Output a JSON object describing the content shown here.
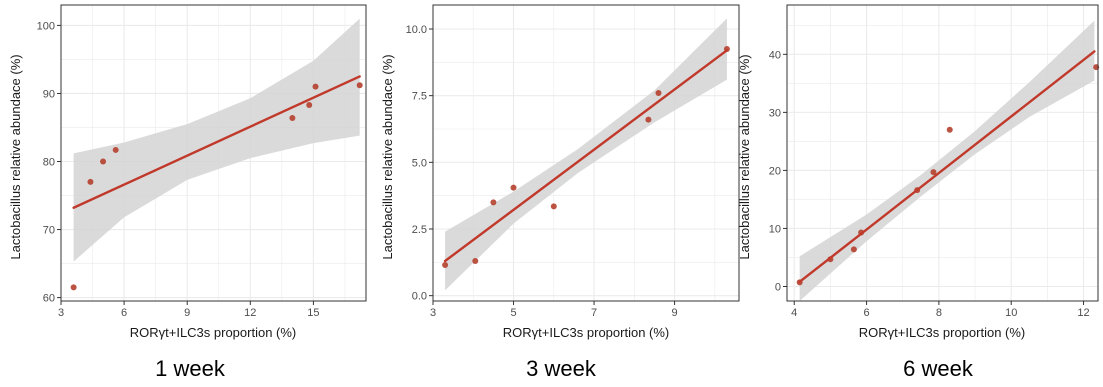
{
  "colors": {
    "point": "#b5402e",
    "line": "#c0392b",
    "band": "#d3d3d3",
    "grid": "#ebebeb",
    "frame": "#333333"
  },
  "chart_data": [
    {
      "type": "scatter",
      "caption": "1 week",
      "xlabel": "RORγt+ILC3s proportion (%)",
      "ylabel": "Lactobacillus relative abundace (%)",
      "xlim": [
        3,
        17.5
      ],
      "ylim": [
        59.5,
        103
      ],
      "xticks": [
        3,
        6,
        9,
        12,
        15
      ],
      "yticks": [
        60,
        70,
        80,
        90,
        100
      ],
      "x_tick_labels": [
        "3",
        "6",
        "9",
        "12",
        "15"
      ],
      "y_tick_labels": [
        "60",
        "70",
        "80",
        "90",
        "100"
      ],
      "points": [
        {
          "x": 3.6,
          "y": 61.5
        },
        {
          "x": 4.4,
          "y": 77
        },
        {
          "x": 5.0,
          "y": 80
        },
        {
          "x": 5.6,
          "y": 81.7
        },
        {
          "x": 14.0,
          "y": 86.4
        },
        {
          "x": 14.8,
          "y": 88.3
        },
        {
          "x": 15.1,
          "y": 91
        },
        {
          "x": 17.2,
          "y": 91.2
        }
      ],
      "fit": {
        "x": [
          3.6,
          17.2
        ],
        "y": [
          73.2,
          92.5
        ]
      },
      "band": [
        {
          "x": 3.6,
          "lo": 65.3,
          "hi": 81.2
        },
        {
          "x": 6,
          "lo": 71.8,
          "hi": 82.8
        },
        {
          "x": 9,
          "lo": 77.3,
          "hi": 85.5
        },
        {
          "x": 12,
          "lo": 80.5,
          "hi": 89.3
        },
        {
          "x": 15,
          "lo": 82.7,
          "hi": 94.8
        },
        {
          "x": 17.2,
          "lo": 83.8,
          "hi": 101
        }
      ],
      "grid": true
    },
    {
      "type": "scatter",
      "caption": "3 week",
      "xlabel": "RORγt+ILC3s proportion (%)",
      "ylabel": "Lactobacillus relative abundace (%)",
      "xlim": [
        3,
        10.6
      ],
      "ylim": [
        -0.2,
        10.9
      ],
      "xticks": [
        3,
        5,
        7,
        9
      ],
      "yticks": [
        0,
        2.5,
        5,
        7.5,
        10
      ],
      "x_tick_labels": [
        "3",
        "5",
        "7",
        "9"
      ],
      "y_tick_labels": [
        "0.0",
        "2.5",
        "5.0",
        "7.5",
        "10.0"
      ],
      "points": [
        {
          "x": 3.3,
          "y": 1.15
        },
        {
          "x": 4.05,
          "y": 1.3
        },
        {
          "x": 4.5,
          "y": 3.5
        },
        {
          "x": 5.0,
          "y": 4.05
        },
        {
          "x": 6.0,
          "y": 3.35
        },
        {
          "x": 8.35,
          "y": 6.6
        },
        {
          "x": 8.6,
          "y": 7.6
        },
        {
          "x": 10.3,
          "y": 9.25
        }
      ],
      "fit": {
        "x": [
          3.3,
          10.3
        ],
        "y": [
          1.3,
          9.2
        ]
      },
      "band": [
        {
          "x": 3.3,
          "lo": 0.2,
          "hi": 2.4
        },
        {
          "x": 5,
          "lo": 2.7,
          "hi": 3.9
        },
        {
          "x": 6.6,
          "lo": 4.6,
          "hi": 5.5
        },
        {
          "x": 8.5,
          "lo": 6.5,
          "hi": 7.7
        },
        {
          "x": 10.3,
          "lo": 8.1,
          "hi": 10.4
        }
      ],
      "grid": true
    },
    {
      "type": "scatter",
      "caption": "6 week",
      "xlabel": "RORγt+ILC3s proportion (%)",
      "ylabel": "Lactobacillus relative abundace (%)",
      "xlim": [
        3.8,
        12.4
      ],
      "ylim": [
        -2.5,
        48.5
      ],
      "xticks": [
        4,
        6,
        8,
        10,
        12
      ],
      "yticks": [
        0,
        10,
        20,
        30,
        40
      ],
      "x_tick_labels": [
        "4",
        "6",
        "8",
        "10",
        "12"
      ],
      "y_tick_labels": [
        "0",
        "10",
        "20",
        "30",
        "40"
      ],
      "points": [
        {
          "x": 4.15,
          "y": 0.7
        },
        {
          "x": 5.0,
          "y": 4.7
        },
        {
          "x": 5.65,
          "y": 6.4
        },
        {
          "x": 5.85,
          "y": 9.3
        },
        {
          "x": 7.4,
          "y": 16.6
        },
        {
          "x": 7.85,
          "y": 19.7
        },
        {
          "x": 8.3,
          "y": 27
        },
        {
          "x": 12.35,
          "y": 37.8
        }
      ],
      "fit": {
        "x": [
          4.15,
          12.3
        ],
        "y": [
          0.8,
          40.5
        ]
      },
      "band": [
        {
          "x": 4.15,
          "lo": -2.5,
          "hi": 5.2
        },
        {
          "x": 6,
          "lo": 7.8,
          "hi": 12.4
        },
        {
          "x": 7.5,
          "lo": 15.5,
          "hi": 19.2
        },
        {
          "x": 9,
          "lo": 22.8,
          "hi": 26.8
        },
        {
          "x": 10.5,
          "lo": 29.2,
          "hi": 35.2
        },
        {
          "x": 12.3,
          "lo": 35.5,
          "hi": 45.8
        }
      ],
      "grid": true
    }
  ]
}
